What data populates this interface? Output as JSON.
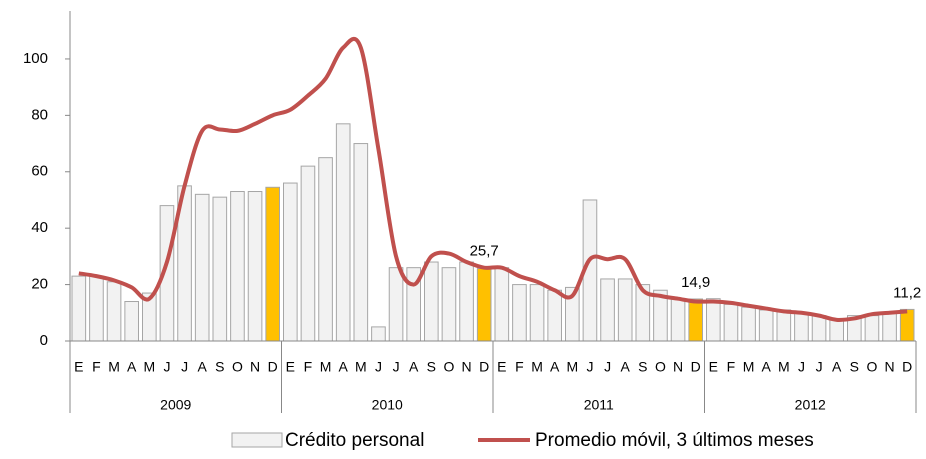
{
  "chart_data": {
    "type": "bar_line",
    "categories": [
      "E",
      "F",
      "M",
      "A",
      "M",
      "J",
      "J",
      "A",
      "S",
      "O",
      "N",
      "D",
      "E",
      "F",
      "M",
      "A",
      "M",
      "J",
      "J",
      "A",
      "S",
      "O",
      "N",
      "D",
      "E",
      "F",
      "M",
      "A",
      "M",
      "J",
      "J",
      "A",
      "S",
      "O",
      "N",
      "D",
      "E",
      "F",
      "M",
      "A",
      "M",
      "J",
      "J",
      "A",
      "S",
      "O",
      "N",
      "D"
    ],
    "years": [
      "2009",
      "2010",
      "2011",
      "2012"
    ],
    "series": [
      {
        "name": "Crédito personal",
        "type": "bar",
        "color": "#f2f2f2",
        "colors": [
          "#f2f2f2",
          "#f2f2f2",
          "#f2f2f2",
          "#f2f2f2",
          "#f2f2f2",
          "#f2f2f2",
          "#f2f2f2",
          "#f2f2f2",
          "#f2f2f2",
          "#f2f2f2",
          "#f2f2f2",
          "#ffc000",
          "#f2f2f2",
          "#f2f2f2",
          "#f2f2f2",
          "#f2f2f2",
          "#f2f2f2",
          "#f2f2f2",
          "#f2f2f2",
          "#f2f2f2",
          "#f2f2f2",
          "#f2f2f2",
          "#f2f2f2",
          "#ffc000",
          "#f2f2f2",
          "#f2f2f2",
          "#f2f2f2",
          "#f2f2f2",
          "#f2f2f2",
          "#f2f2f2",
          "#f2f2f2",
          "#f2f2f2",
          "#f2f2f2",
          "#f2f2f2",
          "#f2f2f2",
          "#ffc000",
          "#f2f2f2",
          "#f2f2f2",
          "#f2f2f2",
          "#f2f2f2",
          "#f2f2f2",
          "#f2f2f2",
          "#f2f2f2",
          "#f2f2f2",
          "#f2f2f2",
          "#f2f2f2",
          "#f2f2f2",
          "#ffc000"
        ],
        "values": [
          23,
          23,
          21,
          14,
          17,
          48,
          55,
          52,
          51,
          53,
          53,
          54.5,
          56,
          62,
          65,
          77,
          70,
          5,
          26,
          26,
          28,
          26,
          28,
          25.7,
          26,
          20,
          20,
          18,
          19,
          50,
          22,
          22,
          20,
          18,
          15,
          14.9,
          15,
          13,
          12,
          11,
          11,
          10,
          9,
          8,
          9,
          9,
          10,
          11.2
        ],
        "value_labels": [
          null,
          null,
          null,
          null,
          null,
          null,
          null,
          null,
          null,
          null,
          null,
          null,
          null,
          null,
          null,
          null,
          null,
          null,
          null,
          null,
          null,
          null,
          null,
          "25,7",
          null,
          null,
          null,
          null,
          null,
          null,
          null,
          null,
          null,
          null,
          null,
          "14,9",
          null,
          null,
          null,
          null,
          null,
          null,
          null,
          null,
          null,
          null,
          null,
          "11,2"
        ]
      },
      {
        "name": "Promedio móvil, 3 últimos meses",
        "type": "line",
        "color": "#c0504d",
        "values": [
          24,
          23,
          21.5,
          19,
          15,
          28,
          55,
          74.5,
          75,
          74.5,
          77,
          80,
          82,
          87,
          93,
          104,
          104,
          68,
          30,
          20,
          30,
          31,
          28,
          26,
          26,
          23,
          21,
          18,
          16,
          29,
          29,
          29,
          18,
          16,
          15,
          14,
          14,
          13.5,
          12.5,
          11.5,
          10.5,
          10,
          9,
          7.5,
          8,
          9.5,
          10,
          10.5
        ]
      }
    ],
    "ylim": [
      0,
      117
    ],
    "yticks": [
      0,
      20,
      40,
      60,
      80,
      100
    ]
  }
}
